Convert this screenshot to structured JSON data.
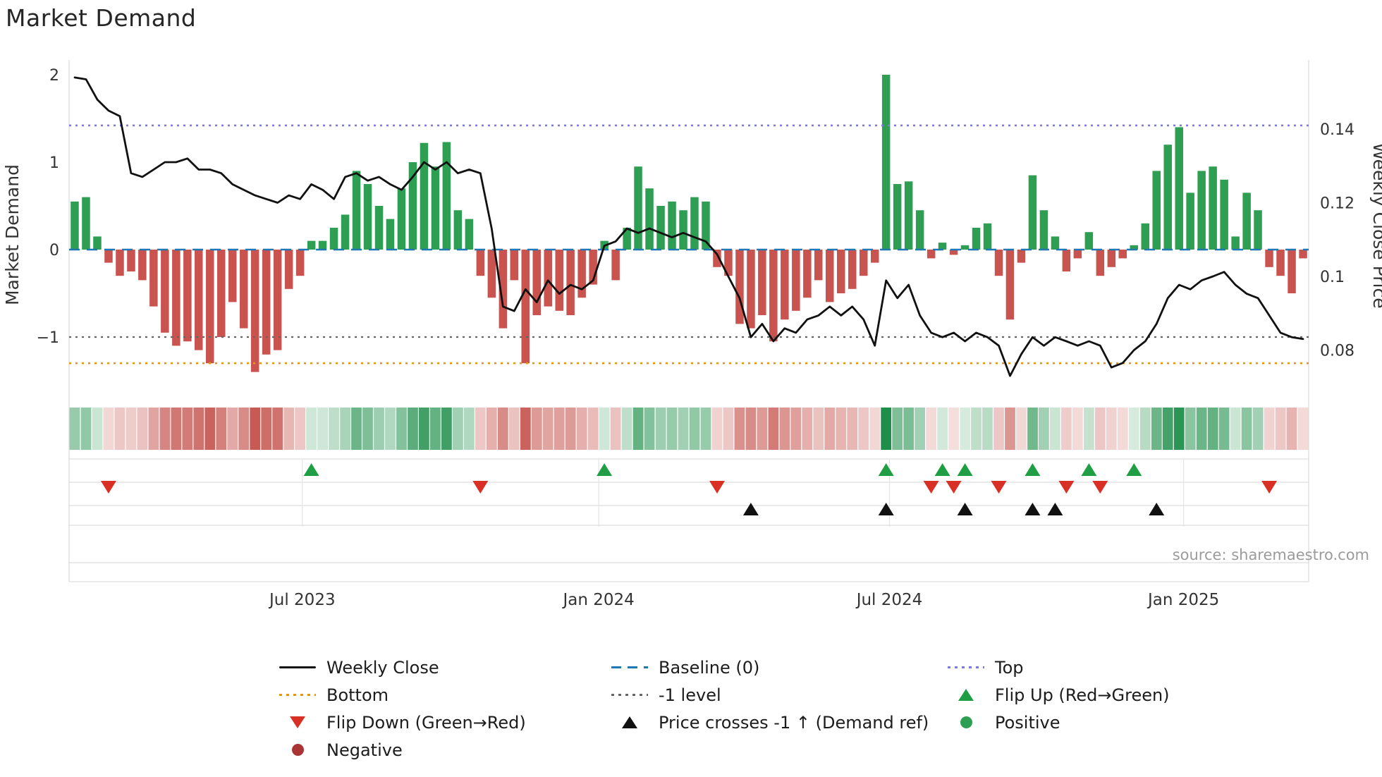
{
  "title": "Market Demand",
  "source": "source: sharemaestro.com",
  "chart_data": {
    "type": "bar+line",
    "title": "Market Demand",
    "ylabel_left": "Market Demand",
    "ylabel_right": "Weekly Close Price",
    "left_ticks": [
      {
        "value": 2,
        "label": "2"
      },
      {
        "value": 1,
        "label": "1"
      },
      {
        "value": 0,
        "label": "0"
      },
      {
        "value": -1,
        "label": "−1"
      }
    ],
    "right_ticks": [
      {
        "value": 0.14,
        "label": "0.14"
      },
      {
        "value": 0.12,
        "label": "0.12"
      },
      {
        "value": 0.1,
        "label": "0.1"
      },
      {
        "value": 0.08,
        "label": "0.08"
      }
    ],
    "x_ticks": [
      {
        "week": 20.2,
        "label": "Jul 2023"
      },
      {
        "week": 46.5,
        "label": "Jan 2024"
      },
      {
        "week": 72.3,
        "label": "Jul 2024"
      },
      {
        "week": 98.4,
        "label": "Jan 2025"
      }
    ],
    "left_axis_range": [
      -1.75,
      2.15
    ],
    "grid": false,
    "reference_lines": {
      "top": 1.42,
      "baseline": 0,
      "minus_one": -1,
      "bottom": -1.3
    },
    "series": {
      "demand_bars": [
        0.55,
        0.6,
        0.15,
        -0.15,
        -0.3,
        -0.25,
        -0.35,
        -0.65,
        -0.95,
        -1.1,
        -1.05,
        -1.15,
        -1.3,
        -1.0,
        -0.6,
        -0.9,
        -1.4,
        -1.2,
        -1.15,
        -0.45,
        -0.3,
        0.1,
        0.1,
        0.25,
        0.4,
        0.9,
        0.75,
        0.5,
        0.35,
        0.7,
        1.0,
        1.22,
        0.95,
        1.23,
        0.45,
        0.35,
        -0.3,
        -0.55,
        -0.9,
        -0.35,
        -1.3,
        -0.75,
        -0.65,
        -0.7,
        -0.75,
        -0.55,
        -0.4,
        0.1,
        -0.35,
        0.25,
        0.95,
        0.7,
        0.5,
        0.55,
        0.45,
        0.6,
        0.55,
        -0.2,
        -0.3,
        -0.85,
        -0.9,
        -0.75,
        -1.05,
        -0.8,
        -0.7,
        -0.55,
        -0.35,
        -0.6,
        -0.5,
        -0.45,
        -0.3,
        -0.15,
        2.0,
        0.75,
        0.78,
        0.45,
        -0.1,
        0.08,
        -0.06,
        0.05,
        0.25,
        0.3,
        -0.3,
        -0.8,
        -0.15,
        0.85,
        0.45,
        0.15,
        -0.25,
        -0.1,
        0.2,
        -0.3,
        -0.2,
        -0.1,
        0.05,
        0.3,
        0.9,
        1.2,
        1.4,
        0.65,
        0.9,
        0.95,
        0.8,
        0.15,
        0.65,
        0.45,
        -0.2,
        -0.3,
        -0.5,
        -0.1
      ],
      "weekly_close_price": [
        0.154,
        0.1535,
        0.148,
        0.145,
        0.1435,
        0.128,
        0.127,
        0.129,
        0.131,
        0.131,
        0.132,
        0.129,
        0.129,
        0.128,
        0.125,
        0.1235,
        0.122,
        0.121,
        0.12,
        0.122,
        0.121,
        0.125,
        0.1235,
        0.121,
        0.127,
        0.128,
        0.126,
        0.127,
        0.125,
        0.1235,
        0.127,
        0.131,
        0.129,
        0.131,
        0.128,
        0.129,
        0.128,
        0.113,
        0.0918,
        0.0906,
        0.0965,
        0.093,
        0.0989,
        0.0953,
        0.0977,
        0.0965,
        0.0989,
        0.1083,
        0.1095,
        0.113,
        0.1118,
        0.113,
        0.1118,
        0.1106,
        0.1118,
        0.1106,
        0.1095,
        0.106,
        0.1,
        0.0941,
        0.0835,
        0.0871,
        0.0824,
        0.0859,
        0.0847,
        0.0883,
        0.0894,
        0.0918,
        0.0894,
        0.0918,
        0.0883,
        0.0812,
        0.0989,
        0.0941,
        0.0977,
        0.0894,
        0.0847,
        0.0835,
        0.0847,
        0.0824,
        0.0847,
        0.0835,
        0.0812,
        0.073,
        0.0789,
        0.0835,
        0.0812,
        0.0835,
        0.0824,
        0.0812,
        0.0824,
        0.0812,
        0.0753,
        0.0765,
        0.08,
        0.0824,
        0.0871,
        0.0941,
        0.0977,
        0.0965,
        0.0989,
        0.1,
        0.1012,
        0.0977,
        0.0953,
        0.0941,
        0.0894,
        0.0847,
        0.0835,
        0.083
      ]
    },
    "markers": {
      "flip_up_weeks": [
        21,
        47,
        72,
        77,
        79,
        85,
        90,
        94
      ],
      "flip_down_weeks": [
        3,
        36,
        57,
        76,
        78,
        82,
        88,
        91,
        106
      ],
      "price_cross_up_weeks": [
        60,
        72,
        79,
        85,
        87,
        96
      ]
    },
    "colors": {
      "positive": "#2e9e53",
      "negative": "#c9534f",
      "price_line": "#111111",
      "baseline": "#1f77b4",
      "top": "#7b7bdb",
      "bottom": "#e8960c",
      "minus_one": "#666666",
      "flip_up": "#1f9e44",
      "flip_down": "#d93025",
      "price_cross": "#111111",
      "heat_pos": "#1e8e4a",
      "heat_neg": "#c4504a"
    }
  },
  "legend": {
    "col1": [
      "Weekly Close",
      "Bottom",
      "Flip Down (Green→Red)",
      "Negative"
    ],
    "col2": [
      "Baseline (0)",
      "-1 level",
      "Price crosses -1 ↑ (Demand ref)"
    ],
    "col3": [
      "Top",
      "Flip Up (Red→Green)",
      "Positive"
    ]
  }
}
